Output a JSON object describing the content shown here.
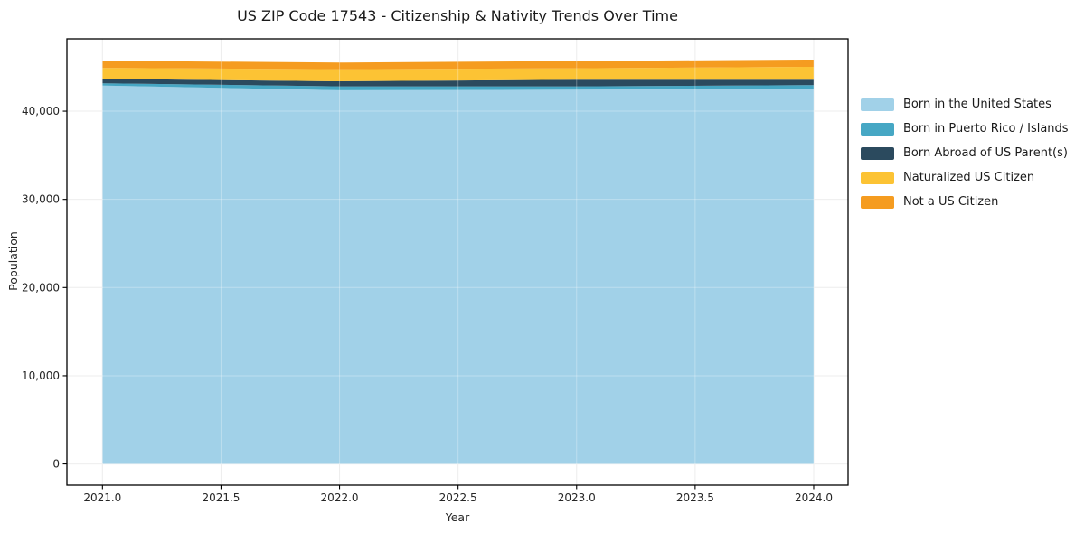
{
  "chart_data": {
    "type": "area",
    "stacked": true,
    "title": "US ZIP Code 17543 - Citizenship & Nativity Trends Over Time",
    "xlabel": "Year",
    "ylabel": "Population",
    "x": [
      2021,
      2022,
      2023,
      2024
    ],
    "series": [
      {
        "name": "Born in the United States",
        "color": "#a1d1e8",
        "values": [
          42900,
          42370,
          42440,
          42540
        ]
      },
      {
        "name": "Born in Puerto Rico / Islands",
        "color": "#46a7c4",
        "values": [
          260,
          440,
          370,
          410
        ]
      },
      {
        "name": "Born Abroad of US Parent(s)",
        "color": "#2b4a5e",
        "values": [
          510,
          580,
          760,
          610
        ]
      },
      {
        "name": "Naturalized US Citizen",
        "color": "#fcc334",
        "values": [
          1230,
          1360,
          1290,
          1470
        ]
      },
      {
        "name": "Not a US Citizen",
        "color": "#f59c20",
        "values": [
          820,
          760,
          820,
          820
        ]
      }
    ],
    "x_ticks": [
      2021.0,
      2021.5,
      2022.0,
      2022.5,
      2023.0,
      2023.5,
      2024.0
    ],
    "x_tick_labels": [
      "2021.0",
      "2021.5",
      "2022.0",
      "2022.5",
      "2023.0",
      "2023.5",
      "2024.0"
    ],
    "y_ticks": [
      0,
      10000,
      20000,
      30000,
      40000
    ],
    "y_tick_labels": [
      "0",
      "10,000",
      "20,000",
      "30,000",
      "40,000"
    ],
    "xlim": [
      2020.85,
      2024.145
    ],
    "ylim": [
      -2400,
      48200
    ],
    "grid": true,
    "grid_color": "#e7e7e7",
    "spine_color": "#000000",
    "legend_position": "right"
  }
}
